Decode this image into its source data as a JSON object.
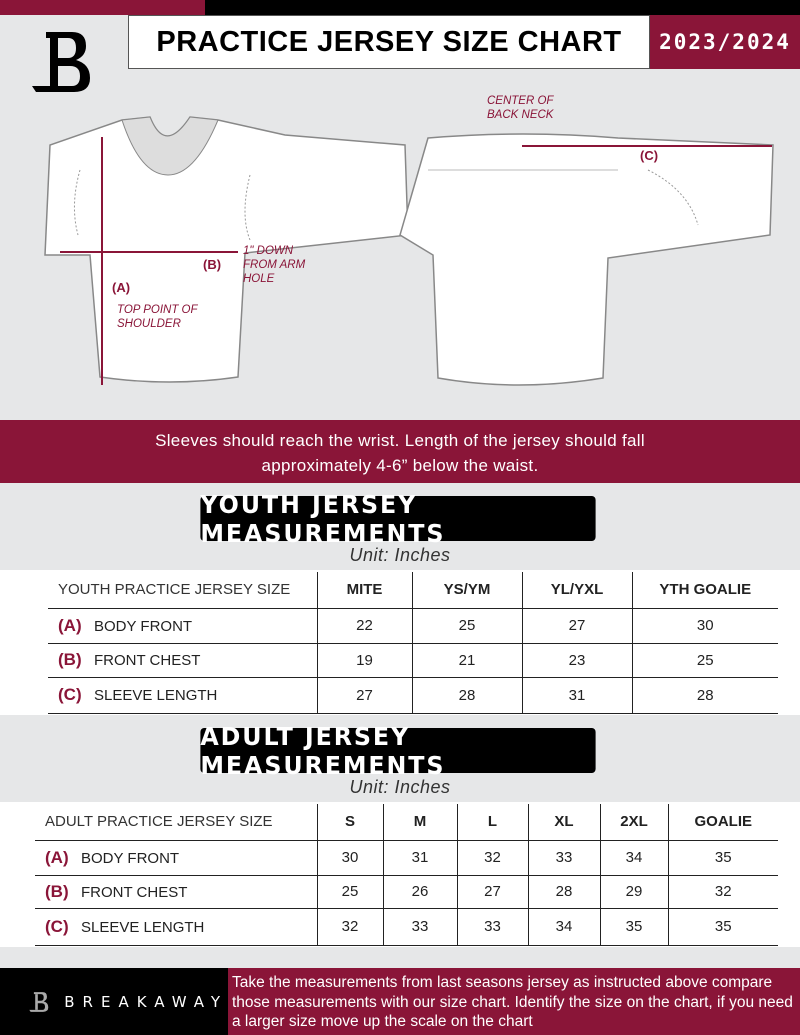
{
  "header": {
    "title": "PRACTICE JERSEY SIZE CHART",
    "season": "2023/2024"
  },
  "diagram": {
    "center_back_neck": "CENTER OF BACK NECK",
    "down_from_arm": "1\" DOWN FROM ARM HOLE",
    "top_of_shoulder": "TOP POINT OF SHOULDER",
    "label_a": "(A)",
    "label_b": "(B)",
    "label_c": "(C)"
  },
  "instructions": {
    "line1": "Sleeves should reach the wrist. Length of the jersey should fall",
    "line2": "approximately 4-6” below the waist."
  },
  "youth": {
    "title": "YOUTH JERSEY MEASUREMENTS",
    "unit": "Unit: Inches",
    "headers": [
      "YOUTH PRACTICE JERSEY SIZE",
      "MITE",
      "YS/YM",
      "YL/YXL",
      "YTH GOALIE"
    ],
    "rows": [
      {
        "letter": "(A)",
        "label": "BODY FRONT",
        "values": [
          "22",
          "25",
          "27",
          "30"
        ]
      },
      {
        "letter": "(B)",
        "label": "FRONT CHEST",
        "values": [
          "19",
          "21",
          "23",
          "25"
        ]
      },
      {
        "letter": "(C)",
        "label": "SLEEVE LENGTH",
        "values": [
          "27",
          "28",
          "31",
          "28"
        ]
      }
    ]
  },
  "adult": {
    "title": "ADULT JERSEY MEASUREMENTS",
    "unit": "Unit: Inches",
    "headers": [
      "ADULT PRACTICE JERSEY SIZE",
      "S",
      "M",
      "L",
      "XL",
      "2XL",
      "GOALIE"
    ],
    "rows": [
      {
        "letter": "(A)",
        "label": "BODY FRONT",
        "values": [
          "30",
          "31",
          "32",
          "33",
          "34",
          "35"
        ]
      },
      {
        "letter": "(B)",
        "label": "FRONT CHEST",
        "values": [
          "25",
          "26",
          "27",
          "28",
          "29",
          "32"
        ]
      },
      {
        "letter": "(C)",
        "label": "SLEEVE LENGTH",
        "values": [
          "32",
          "33",
          "33",
          "34",
          "35",
          "35"
        ]
      }
    ]
  },
  "footer": {
    "brand": "BREAKAWAY",
    "text": "Take the measurements from last seasons jersey as instructed above compare those measurements  with our size chart. Identify the size on the chart, if you need a larger size move up the scale on the chart"
  },
  "colors": {
    "brand": "#8a1538",
    "black": "#000000",
    "background": "#e6e7e8"
  }
}
